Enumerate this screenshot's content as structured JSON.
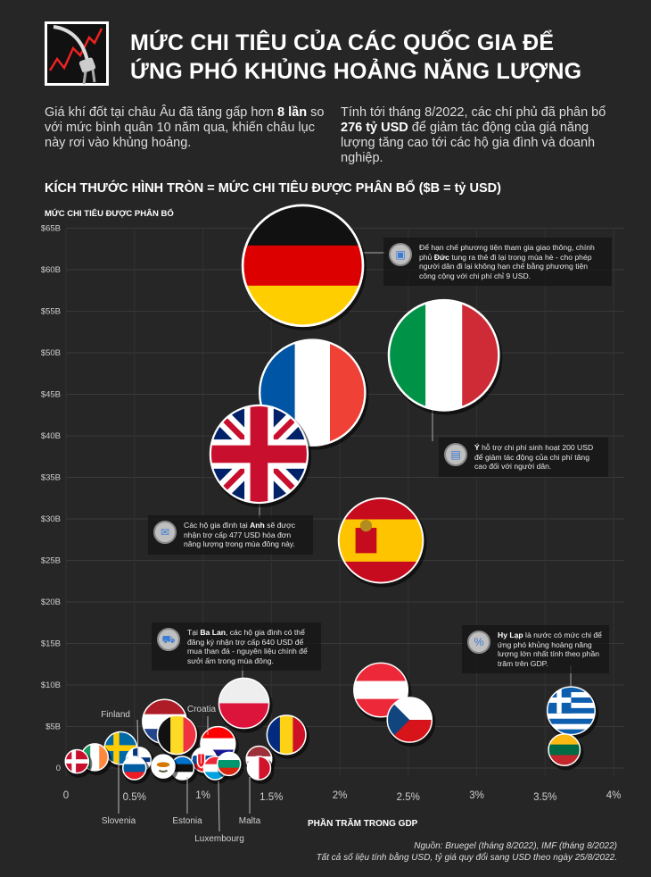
{
  "header": {
    "title_line1": "MỨC CHI TIÊU CỦA CÁC QUỐC GIA ĐỂ",
    "title_line2": "ỨNG PHÓ KHỦNG HOẢNG NĂNG LƯỢNG",
    "logo_icon": "power-plug-rising-chart-icon"
  },
  "intro": {
    "left": {
      "pre": "Giá khí đốt tại châu Âu đã tăng gấp hơn ",
      "bold": "8 lần",
      "post": " so với mức bình quân 10 năm qua, khiến châu lục này rơi vào khủng hoảng."
    },
    "right": {
      "pre": "Tính tới tháng 8/2022, các chí phủ đã phân bổ ",
      "bold": "276 tỷ USD",
      "post": " để giảm tác động của giá năng lượng tăng cao tới các hộ gia đình và doanh nghiệp."
    }
  },
  "legend_note": "KÍCH THƯỚC HÌNH TRÒN = MỨC CHI TIÊU ĐƯỢC PHÂN BỔ ($B = tỷ USD)",
  "annotations": [
    {
      "id": "germany",
      "icon": "train-icon",
      "pre": "Để hạn chế phương tiện tham gia giao thông, chính phủ ",
      "bold": "Đức",
      "post": " tung ra thẻ đi lại trong mùa hè - cho phép người dân đi lại không hạn chế bằng phương tiện công cộng với chi phí chỉ 9 USD."
    },
    {
      "id": "italy",
      "icon": "money-icon",
      "pre": "",
      "bold": "Ý",
      "post": " hỗ trợ chi phí sinh hoạt 200 USD để giảm tác động của chi phí tăng cao đối với người dân."
    },
    {
      "id": "uk",
      "icon": "envelope-icon",
      "pre": "Các hộ gia đình tại ",
      "bold": "Anh",
      "post": " sẽ được nhận trợ cấp 477 USD hóa đơn năng lượng trong mùa đông này."
    },
    {
      "id": "poland",
      "icon": "coal-cart-icon",
      "pre": "Tại ",
      "bold": "Ba Lan",
      "post": ", các hộ gia đình có thể đăng ký nhận trợ cấp 640 USD để mua than đá - nguyên liệu chính để sưởi ấm trong mùa đông."
    },
    {
      "id": "greece",
      "icon": "percent-gauge-icon",
      "pre": "",
      "bold": "Hy Lạp",
      "post": " là nước có mức chi để ứng phó khủng hoảng năng lượng lớn nhất tính theo phần trăm trên GDP."
    }
  ],
  "footer": {
    "source": "Nguồn: Bruegel (tháng 8/2022), IMF (tháng 8/2022)",
    "note": "Tất cả số liệu tính bằng USD, tỷ giá quy đổi sang USD theo ngày 25/8/2022."
  },
  "chart_data": {
    "type": "scatter",
    "subtype": "bubble",
    "xlabel": "PHẦN TRĂM TRONG GDP",
    "ylabel": "MỨC CHI TIÊU ĐƯỢC PHÂN BỔ",
    "xlim": [
      0,
      4
    ],
    "ylim": [
      0,
      65
    ],
    "x_ticks": [
      "0",
      "0.5%",
      "1%",
      "1.5%",
      "2%",
      "2.5%",
      "3%",
      "3.5%",
      "4%"
    ],
    "y_ticks": [
      "0",
      "$5B",
      "$10B",
      "$15B",
      "$20B",
      "$25B",
      "$30B",
      "$35B",
      "$40B",
      "$45B",
      "$50B",
      "$55B",
      "$60B",
      "$65B"
    ],
    "grid": true,
    "background": "#272627",
    "points": [
      {
        "flag_id": "germany",
        "x": 1.73,
        "y": 60.5,
        "flag": {
          "type": "h",
          "colors": [
            "#111111",
            "#dd0000",
            "#ffce00"
          ]
        }
      },
      {
        "flag_id": "italy",
        "x": 2.76,
        "y": 49.7,
        "flag": {
          "type": "v",
          "colors": [
            "#009246",
            "#ffffff",
            "#ce2b37"
          ]
        }
      },
      {
        "flag_id": "france",
        "x": 1.8,
        "y": 45.2,
        "flag": {
          "type": "v",
          "colors": [
            "#0055a4",
            "#ffffff",
            "#ef4135"
          ]
        }
      },
      {
        "flag_id": "uk",
        "x": 1.41,
        "y": 37.8,
        "flag": {
          "type": "uk",
          "colors": [
            "#012169",
            "#ffffff",
            "#c8102e"
          ]
        }
      },
      {
        "flag_id": "spain",
        "x": 2.3,
        "y": 27.4,
        "flag": {
          "type": "spain",
          "colors": [
            "#c60b1e",
            "#ffc400"
          ]
        }
      },
      {
        "flag_id": "austria",
        "x": 2.3,
        "y": 9.4,
        "flag": {
          "type": "h",
          "colors": [
            "#ed2939",
            "#ffffff",
            "#ed2939"
          ]
        }
      },
      {
        "flag_id": "poland",
        "x": 1.3,
        "y": 7.8,
        "flag": {
          "type": "h",
          "colors": [
            "#eeeeee",
            "#dc143c"
          ]
        }
      },
      {
        "flag_id": "greece",
        "x": 3.69,
        "y": 6.9,
        "flag": {
          "type": "greece",
          "colors": [
            "#0d5eaf",
            "#ffffff"
          ]
        }
      },
      {
        "flag_id": "czech",
        "x": 2.51,
        "y": 5.8,
        "flag": {
          "type": "czech",
          "colors": [
            "#ffffff",
            "#d7141a",
            "#11457e"
          ]
        }
      },
      {
        "flag_id": "netherlands",
        "x": 0.72,
        "y": 5.6,
        "flag": {
          "type": "h",
          "colors": [
            "#ae1c28",
            "#ffffff",
            "#21468b"
          ]
        }
      },
      {
        "flag_id": "belgium",
        "x": 0.81,
        "y": 4.0,
        "flag": {
          "type": "v",
          "colors": [
            "#111111",
            "#fdda24",
            "#ef3340"
          ]
        }
      },
      {
        "flag_id": "romania",
        "x": 1.61,
        "y": 4.0,
        "flag": {
          "type": "v",
          "colors": [
            "#002b7f",
            "#fcd116",
            "#ce1126"
          ]
        }
      },
      {
        "flag_id": "croatia",
        "x": 1.11,
        "y": 2.9,
        "label": "Croatia",
        "flag": {
          "type": "h",
          "colors": [
            "#ff0000",
            "#ffffff",
            "#171796"
          ]
        }
      },
      {
        "flag_id": "lithuania",
        "x": 3.64,
        "y": 2.2,
        "flag": {
          "type": "h",
          "colors": [
            "#fdb913",
            "#006a44",
            "#c1272d"
          ]
        }
      },
      {
        "flag_id": "sweden",
        "x": 0.4,
        "y": 2.4,
        "flag": {
          "type": "nordic",
          "colors": [
            "#006aa7",
            "#fecc00"
          ]
        }
      },
      {
        "flag_id": "ireland",
        "x": 0.21,
        "y": 1.3,
        "flag": {
          "type": "v",
          "colors": [
            "#169b62",
            "#ffffff",
            "#ff883e"
          ]
        }
      },
      {
        "flag_id": "denmark",
        "x": 0.08,
        "y": 0.8,
        "flag": {
          "type": "nordic",
          "colors": [
            "#c8102e",
            "#ffffff"
          ]
        }
      },
      {
        "flag_id": "slovenia",
        "x": 0.5,
        "y": 0.0,
        "label": "Slovenia",
        "flag": {
          "type": "h",
          "colors": [
            "#ffffff",
            "#005da4",
            "#ed1c24"
          ]
        }
      },
      {
        "flag_id": "finland",
        "x": 0.53,
        "y": 1.0,
        "label": "Finland",
        "flag": {
          "type": "nordic",
          "colors": [
            "#ffffff",
            "#003580"
          ]
        }
      },
      {
        "flag_id": "estonia",
        "x": 0.85,
        "y": 0.0,
        "label": "Estonia",
        "flag": {
          "type": "h",
          "colors": [
            "#0072ce",
            "#111111",
            "#ffffff"
          ]
        }
      },
      {
        "flag_id": "cyprus",
        "x": 0.71,
        "y": 0.2,
        "flag": {
          "type": "cyprus",
          "colors": [
            "#ffffff",
            "#d57800",
            "#4e5b31"
          ]
        }
      },
      {
        "flag_id": "luxembourg",
        "x": 1.09,
        "y": 0.0,
        "label": "Luxembourg",
        "flag": {
          "type": "h",
          "colors": [
            "#ed2939",
            "#ffffff",
            "#00a1de"
          ]
        }
      },
      {
        "flag_id": "bulgaria",
        "x": 1.19,
        "y": 0.5,
        "flag": {
          "type": "h",
          "colors": [
            "#ffffff",
            "#00966e",
            "#d62612"
          ]
        }
      },
      {
        "flag_id": "malta",
        "x": 1.41,
        "y": 0.0,
        "label": "Malta",
        "flag": {
          "type": "v",
          "colors": [
            "#ffffff",
            "#cf142b"
          ]
        }
      },
      {
        "flag_id": "latvia",
        "x": 1.41,
        "y": 1.1,
        "flag": {
          "type": "latvia",
          "colors": [
            "#9e3039",
            "#ffffff"
          ]
        }
      },
      {
        "flag_id": "slovakia",
        "x": 1.01,
        "y": 1.0,
        "flag": {
          "type": "slovakia",
          "colors": [
            "#ffffff",
            "#0b4ea2",
            "#ee1c25"
          ]
        }
      }
    ]
  }
}
